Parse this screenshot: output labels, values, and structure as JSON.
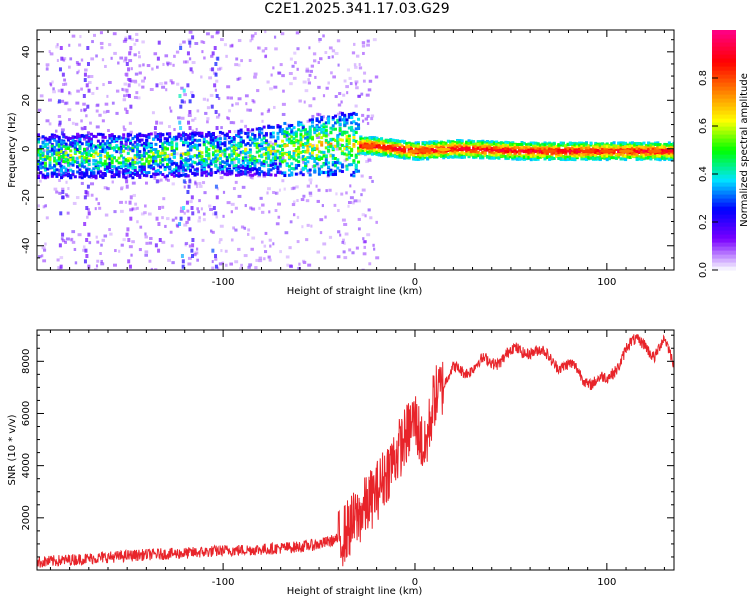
{
  "title": "C2E1.2025.341.17.03.G29",
  "chart_data": [
    {
      "type": "heatmap",
      "name": "spectrogram",
      "xlabel": "Height of straight line (km)",
      "ylabel": "Frequency (Hz)",
      "xlim": [
        -197,
        135
      ],
      "ylim": [
        -50,
        49
      ],
      "x_ticks": [
        -100,
        0,
        100
      ],
      "x_tick_labels": [
        "-100",
        "0",
        "100"
      ],
      "y_ticks": [
        -40,
        -20,
        0,
        20,
        40
      ],
      "y_tick_labels": [
        "-40",
        "-20",
        "0",
        "20",
        "40"
      ],
      "colorbar": {
        "label": "Normalized spectral amplitude",
        "range": [
          0,
          1
        ],
        "ticks": [
          0,
          0.2,
          0.4,
          0.6,
          0.8
        ],
        "tick_labels": [
          "0.0",
          "0.2",
          "0.4",
          "0.6",
          "0.8"
        ],
        "colors": [
          "#f4f0ff",
          "#7a00ff",
          "#0000ff",
          "#00e5ff",
          "#00ff00",
          "#ffff00",
          "#ff8000",
          "#ff0000",
          "#ff0080"
        ]
      },
      "ridge": {
        "description": "dominant frequency track",
        "points": [
          [
            -197,
            -3
          ],
          [
            -150,
            -3
          ],
          [
            -100,
            -2
          ],
          [
            -60,
            0
          ],
          [
            -40,
            2
          ],
          [
            -20,
            1
          ],
          [
            0,
            -1
          ],
          [
            20,
            0
          ],
          [
            60,
            -1
          ],
          [
            100,
            -1
          ],
          [
            135,
            -1
          ]
        ]
      }
    },
    {
      "type": "line",
      "name": "snr",
      "xlabel": "Height of straight line (km)",
      "ylabel": "SNR (10 * v/v)",
      "xlim": [
        -197,
        135
      ],
      "ylim": [
        0,
        9200
      ],
      "x_ticks": [
        -100,
        0,
        100
      ],
      "x_tick_labels": [
        "-100",
        "0",
        "100"
      ],
      "y_ticks": [
        2000,
        4000,
        6000,
        8000
      ],
      "y_tick_labels": [
        "2000",
        "4000",
        "6000",
        "8000"
      ],
      "color": "#e8242a",
      "series": [
        {
          "name": "SNR",
          "x": [
            -197,
            -180,
            -160,
            -140,
            -120,
            -100,
            -80,
            -60,
            -50,
            -40,
            -30,
            -20,
            -10,
            0,
            5,
            10,
            20,
            30,
            40,
            50,
            60,
            70,
            80,
            90,
            100,
            110,
            120,
            125,
            130,
            135
          ],
          "y": [
            200,
            300,
            400,
            500,
            550,
            650,
            700,
            800,
            900,
            1100,
            2000,
            3000,
            4400,
            5800,
            4500,
            6600,
            7600,
            7800,
            8000,
            8300,
            8500,
            8100,
            7800,
            7300,
            7200,
            8500,
            8800,
            8200,
            8700,
            8000
          ]
        }
      ]
    }
  ]
}
